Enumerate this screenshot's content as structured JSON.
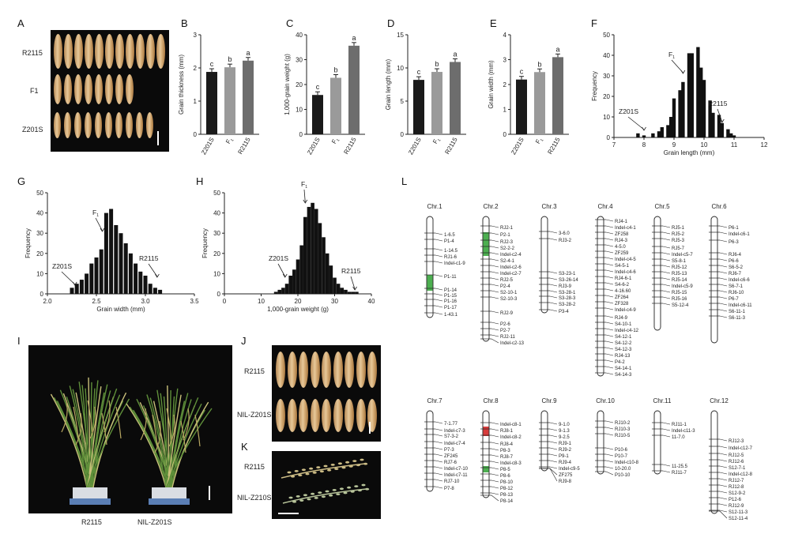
{
  "panel_labels": [
    "A",
    "B",
    "C",
    "D",
    "E",
    "F",
    "G",
    "H",
    "I",
    "J",
    "K",
    "L"
  ],
  "panelA": {
    "rows": [
      "R2115",
      "F1",
      "Z201S"
    ]
  },
  "bar_panels": [
    {
      "id": "B",
      "ylabel": "Grain thickness (mm)",
      "ylim": [
        0,
        3
      ],
      "ticks": [
        "0",
        "1",
        "2",
        "3"
      ],
      "categories": [
        "Z201S",
        "F1",
        "R2115"
      ],
      "values": [
        1.88,
        2.02,
        2.22
      ],
      "letters": [
        "c",
        "b",
        "a"
      ],
      "colors": [
        "#1a1a1a",
        "#9a9a9a",
        "#6d6d6d"
      ]
    },
    {
      "id": "C",
      "ylabel": "1,000-grain weight (g)",
      "ylim": [
        0,
        40
      ],
      "ticks": [
        "0",
        "10",
        "20",
        "30",
        "40"
      ],
      "categories": [
        "Z201S",
        "F1",
        "R2115"
      ],
      "values": [
        15.8,
        22.7,
        35.6
      ],
      "letters": [
        "c",
        "b",
        "a"
      ],
      "colors": [
        "#1a1a1a",
        "#9a9a9a",
        "#6d6d6d"
      ]
    },
    {
      "id": "D",
      "ylabel": "Grain length (mm)",
      "ylim": [
        0,
        15
      ],
      "ticks": [
        "0",
        "5",
        "10",
        "15"
      ],
      "categories": [
        "Z201S",
        "F1",
        "R2115"
      ],
      "values": [
        8.2,
        9.4,
        10.9
      ],
      "letters": [
        "c",
        "b",
        "a"
      ],
      "colors": [
        "#1a1a1a",
        "#9a9a9a",
        "#6d6d6d"
      ]
    },
    {
      "id": "E",
      "ylabel": "Grain width (mm)",
      "ylim": [
        0,
        4
      ],
      "ticks": [
        "0",
        "1",
        "2",
        "3",
        "4"
      ],
      "categories": [
        "Z201S",
        "F1",
        "R2115"
      ],
      "values": [
        2.2,
        2.5,
        3.1
      ],
      "letters": [
        "c",
        "b",
        "a"
      ],
      "colors": [
        "#1a1a1a",
        "#9a9a9a",
        "#6d6d6d"
      ]
    }
  ],
  "chart_data": [
    {
      "type": "bar",
      "title": "B",
      "categories": [
        "Z201S",
        "F1",
        "R2115"
      ],
      "values": [
        1.88,
        2.02,
        2.22
      ],
      "ylabel": "Grain thickness (mm)",
      "ylim": [
        0,
        3
      ]
    },
    {
      "type": "bar",
      "title": "C",
      "categories": [
        "Z201S",
        "F1",
        "R2115"
      ],
      "values": [
        15.8,
        22.7,
        35.6
      ],
      "ylabel": "1,000-grain weight (g)",
      "ylim": [
        0,
        40
      ]
    },
    {
      "type": "bar",
      "title": "D",
      "categories": [
        "Z201S",
        "F1",
        "R2115"
      ],
      "values": [
        8.2,
        9.4,
        10.9
      ],
      "ylabel": "Grain length (mm)",
      "ylim": [
        0,
        15
      ]
    },
    {
      "type": "bar",
      "title": "E",
      "categories": [
        "Z201S",
        "F1",
        "R2115"
      ],
      "values": [
        2.2,
        2.5,
        3.1
      ],
      "ylabel": "Grain width (mm)",
      "ylim": [
        0,
        4
      ]
    },
    {
      "type": "bar",
      "title": "F",
      "xlabel": "Grain length (mm)",
      "ylabel": "Frequency",
      "xlim": [
        7,
        12
      ],
      "ylim": [
        0,
        50
      ],
      "x": [
        7.8,
        8.0,
        8.1,
        8.3,
        8.5,
        8.6,
        8.8,
        8.9,
        9.0,
        9.2,
        9.3,
        9.5,
        9.6,
        9.8,
        9.9,
        10.0,
        10.2,
        10.3,
        10.5,
        10.6,
        10.8,
        10.9,
        11.0
      ],
      "values": [
        2,
        1,
        0,
        2,
        3,
        5,
        6,
        10,
        19,
        23,
        27,
        41,
        41,
        44,
        34,
        28,
        18,
        12,
        11,
        7,
        4,
        2,
        1
      ]
    },
    {
      "type": "bar",
      "title": "G",
      "xlabel": "Grain width (mm)",
      "ylabel": "Frequency",
      "xlim": [
        2.0,
        3.5
      ],
      "ylim": [
        0,
        50
      ],
      "x": [
        2.25,
        2.3,
        2.35,
        2.4,
        2.45,
        2.5,
        2.55,
        2.6,
        2.65,
        2.7,
        2.75,
        2.8,
        2.85,
        2.9,
        2.95,
        3.0,
        3.05,
        3.1,
        3.15
      ],
      "values": [
        3,
        5,
        7,
        10,
        15,
        18,
        22,
        40,
        42,
        34,
        30,
        25,
        20,
        15,
        11,
        9,
        5,
        3,
        2
      ]
    },
    {
      "type": "bar",
      "title": "H",
      "xlabel": "1,000-grain weight (g)",
      "ylabel": "Frequency",
      "xlim": [
        0,
        40
      ],
      "ylim": [
        0,
        50
      ],
      "x": [
        14,
        15,
        16,
        17,
        18,
        19,
        20,
        21,
        22,
        23,
        24,
        25,
        26,
        27,
        28,
        29,
        30,
        31,
        32,
        33,
        34,
        35,
        36
      ],
      "values": [
        1,
        2,
        3,
        5,
        9,
        12,
        17,
        24,
        38,
        43,
        45,
        42,
        35,
        28,
        20,
        14,
        8,
        5,
        3,
        2,
        1,
        1,
        1
      ]
    }
  ],
  "hist_panels": [
    {
      "id": "F",
      "xlabel": "Grain length (mm)",
      "ylabel": "Frequency",
      "xticks": [
        "7",
        "8",
        "9",
        "10",
        "11",
        "12"
      ],
      "yticks": [
        "0",
        "10",
        "20",
        "30",
        "40",
        "50"
      ],
      "annot": {
        "left": "Z201S",
        "mid": "F",
        "mid_sub": "1",
        "right": "R2115"
      }
    },
    {
      "id": "G",
      "xlabel": "Grain width (mm)",
      "ylabel": "Frequency",
      "xticks": [
        "2.0",
        "2.5",
        "3.0",
        "3.5"
      ],
      "yticks": [
        "0",
        "10",
        "20",
        "30",
        "40",
        "50"
      ],
      "annot": {
        "left": "Z201S",
        "mid": "F",
        "mid_sub": "1",
        "right": "R2115"
      }
    },
    {
      "id": "H",
      "xlabel": "1,000-grain weight (g)",
      "ylabel": "Frequency",
      "xticks": [
        "0",
        "10",
        "20",
        "30",
        "40"
      ],
      "yticks": [
        "0",
        "10",
        "20",
        "30",
        "40",
        "50"
      ],
      "annot": {
        "left": "Z201S",
        "mid": "F",
        "mid_sub": "1",
        "right": "R2115"
      }
    }
  ],
  "panelI": {
    "labels": [
      "R2115",
      "NIL-Z201S"
    ]
  },
  "panelJ": {
    "rows": [
      "R2115",
      "NIL-Z201S"
    ]
  },
  "panelK": {
    "rows": [
      "R2115",
      "NIL-Z210S"
    ]
  },
  "chromosomes": [
    {
      "name": "Chr.1",
      "markers": [
        "1-6.5",
        "P1-4",
        "1-14.5",
        "RJ1-6",
        "Indel-c1-9",
        "P1-11",
        "P1-14",
        "P1-15",
        "P1-16",
        "P1-17",
        "1-43.1"
      ]
    },
    {
      "name": "Chr.2",
      "markers": [
        "RJ2-1",
        "P2-1",
        "RJ2-3",
        "S2-2-2",
        "Indel-c2-4",
        "S2-4-1",
        "Indel-c2-6",
        "Indel-c2-7",
        "RJ2-5",
        "P2-4",
        "S2-10-1",
        "S2-10-3",
        "RJ2-9",
        "P2-6",
        "P2-7",
        "RJ2-11",
        "Indel-c2-13"
      ]
    },
    {
      "name": "Chr.3",
      "markers": [
        "3-6.0",
        "RJ3-2",
        "S3-23-1",
        "S3-26-14",
        "RJ3-9",
        "S3-28-1",
        "S3-28-3",
        "S3-28-2",
        "P3-4"
      ]
    },
    {
      "name": "Chr.4",
      "markers": [
        "RJ4-1",
        "Indel-c4-1",
        "ZF258",
        "RJ4-3",
        "4-5.0",
        "ZF259",
        "Indel-c4-5",
        "S4-5-1",
        "Indel-c4-6",
        "RJ4-6-1",
        "S4-6-2",
        "4-16.60",
        "ZF264",
        "ZF328",
        "Indel-c4-9",
        "RJ4-9",
        "S4-10-1",
        "Indel-c4-12",
        "S4-12-1",
        "S4-12-2",
        "S4-12-3",
        "RJ4-13",
        "P4-2",
        "S4-14-1",
        "S4-14-3"
      ]
    },
    {
      "name": "Chr.5",
      "markers": [
        "RJ5-1",
        "RJ5-2",
        "RJ5-3",
        "RJ5-7",
        "Indel-c5-7",
        "S5-8-1",
        "RJ5-12",
        "RJ5-13",
        "RJ5-14",
        "Indel-c5-9",
        "RJ5-15",
        "RJ5-16",
        "S5-12-4"
      ]
    },
    {
      "name": "Chr.6",
      "markers": [
        "P6-1",
        "Indel-c6-1",
        "P6-3",
        "RJ6-4",
        "P6-6",
        "S6-5-2",
        "RJ6-7",
        "Indel-c6-6",
        "S6-7-1",
        "RJ6-10",
        "P6-7",
        "Indel-c6-11",
        "S6-11-1",
        "S6-11-3"
      ]
    },
    {
      "name": "Chr.7",
      "markers": [
        "7-1.77",
        "Indel-c7-3",
        "S7-3-2",
        "Indel-c7-4",
        "P7-3",
        "ZF245",
        "RJ7-6",
        "Indel-c7-10",
        "Indel-c7-11",
        "RJ7-10",
        "P7-8"
      ]
    },
    {
      "name": "Chr.8",
      "markers": [
        "Indel-c8-1",
        "RJ8-1",
        "Indel-c8-2",
        "RJ8-4",
        "P8-3",
        "RJ8-7",
        "Indel-c8-3",
        "P8-5",
        "P8-6",
        "P8-10",
        "P8-12",
        "P8-13",
        "P8-14"
      ]
    },
    {
      "name": "Chr.9",
      "markers": [
        "9-1.0",
        "9-1.3",
        "9-2.5",
        "RJ9-1",
        "RJ9-2",
        "P9-1",
        "RJ9-4",
        "Indel-c9-5",
        "ZF275",
        "RJ9-8"
      ]
    },
    {
      "name": "Chr.10",
      "markers": [
        "RJ10-2",
        "RJ10-3",
        "RJ10-5",
        "P10-6",
        "P10-7",
        "Indel-c10-8",
        "10-20.0",
        "P10-10"
      ]
    },
    {
      "name": "Chr.11",
      "markers": [
        "RJ11-1",
        "Indel-c11-3",
        "11-7.0",
        "11-25.5",
        "RJ11-7"
      ]
    },
    {
      "name": "Chr.12",
      "markers": [
        "RJ12-3",
        "Indel-c12-7",
        "RJ12-5",
        "RJ12-6",
        "S12-7-1",
        "Indel-c12-8",
        "RJ12-7",
        "RJ12-8",
        "S12-9-2",
        "P12-6",
        "RJ12-9",
        "S12-11-3",
        "S12-11-4"
      ]
    }
  ],
  "colors": {
    "green": "#4caf50",
    "red": "#d83b3b",
    "bar_dark": "#1a1a1a",
    "bar_mid": "#9a9a9a",
    "bar_gray": "#6d6d6d"
  }
}
